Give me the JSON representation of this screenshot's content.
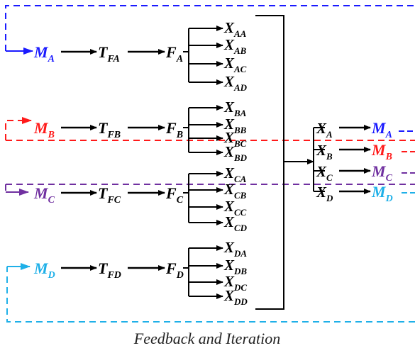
{
  "colors": {
    "A": "#1a1aff",
    "B": "#ff1a1a",
    "C": "#7030a0",
    "D": "#1fb0e8",
    "black": "#000000"
  },
  "groups": [
    {
      "id": "A",
      "m_main": "M",
      "m_sub": "A",
      "t_main": "T",
      "t_sub": "FA",
      "f_main": "F",
      "f_sub": "A",
      "x_items": [
        {
          "main": "X",
          "sub": "AA"
        },
        {
          "main": "X",
          "sub": "AB"
        },
        {
          "main": "X",
          "sub": "AC"
        },
        {
          "main": "X",
          "sub": "AD"
        }
      ]
    },
    {
      "id": "B",
      "m_main": "M",
      "m_sub": "B",
      "t_main": "T",
      "t_sub": "FB",
      "f_main": "F",
      "f_sub": "B",
      "x_items": [
        {
          "main": "X",
          "sub": "BA"
        },
        {
          "main": "X",
          "sub": "BB"
        },
        {
          "main": "X",
          "sub": "BC"
        },
        {
          "main": "X",
          "sub": "BD"
        }
      ]
    },
    {
      "id": "C",
      "m_main": "M",
      "m_sub": "C",
      "t_main": "T",
      "t_sub": "FC",
      "f_main": "F",
      "f_sub": "C",
      "x_items": [
        {
          "main": "X",
          "sub": "CA"
        },
        {
          "main": "X",
          "sub": "CB"
        },
        {
          "main": "X",
          "sub": "CC"
        },
        {
          "main": "X",
          "sub": "CD"
        }
      ]
    },
    {
      "id": "D",
      "m_main": "M",
      "m_sub": "D",
      "t_main": "T",
      "t_sub": "FD",
      "f_main": "F",
      "f_sub": "D",
      "x_items": [
        {
          "main": "X",
          "sub": "DA"
        },
        {
          "main": "X",
          "sub": "DB"
        },
        {
          "main": "X",
          "sub": "DC"
        },
        {
          "main": "X",
          "sub": "DD"
        }
      ]
    }
  ],
  "outputs": [
    {
      "x_main": "X",
      "x_sub": "A",
      "m_main": "M",
      "m_sub": "A"
    },
    {
      "x_main": "X",
      "x_sub": "B",
      "m_main": "M",
      "m_sub": "B"
    },
    {
      "x_main": "X",
      "x_sub": "C",
      "m_main": "M",
      "m_sub": "C"
    },
    {
      "x_main": "X",
      "x_sub": "D",
      "m_main": "M",
      "m_sub": "D"
    }
  ],
  "caption": "Feedback and Iteration"
}
